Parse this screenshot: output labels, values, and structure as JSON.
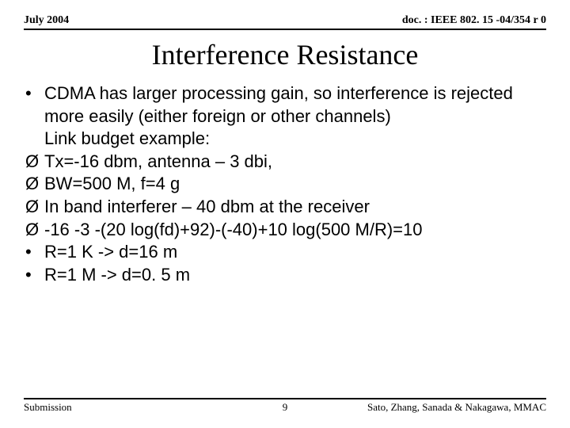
{
  "header": {
    "date": "July 2004",
    "doc": "doc. : IEEE 802. 15 -04/354 r 0"
  },
  "title": "Interference Resistance",
  "body": {
    "lines": [
      {
        "marker": "•",
        "indent": 0,
        "text": "CDMA has larger processing gain, so interference is rejected more easily (either foreign or other channels)"
      },
      {
        "marker": "",
        "indent": 0,
        "text": "Link budget example:"
      },
      {
        "marker": "Ø",
        "indent": 0,
        "text": "Tx=-16 dbm, antenna – 3 dbi,"
      },
      {
        "marker": "Ø",
        "indent": 0,
        "text": "BW=500 M, f=4 g"
      },
      {
        "marker": "Ø",
        "indent": 0,
        "text": "In band interferer – 40 dbm at the receiver"
      },
      {
        "marker": "Ø",
        "indent": 0,
        "text": "-16 -3 -(20 log(fd)+92)-(-40)+10 log(500 M/R)=10"
      },
      {
        "marker": "•",
        "indent": 0,
        "text": "R=1 K -> d=16 m"
      },
      {
        "marker": "•",
        "indent": 0,
        "text": "R=1 M -> d=0. 5 m"
      }
    ]
  },
  "footer": {
    "left": "Submission",
    "page": "9",
    "right": "Sato, Zhang, Sanada & Nakagawa, MMAC"
  },
  "style": {
    "background": "#ffffff",
    "rule_color": "#000000",
    "title_fontsize": 36,
    "body_fontsize": 22,
    "header_fontsize": 14,
    "footer_fontsize": 13
  }
}
